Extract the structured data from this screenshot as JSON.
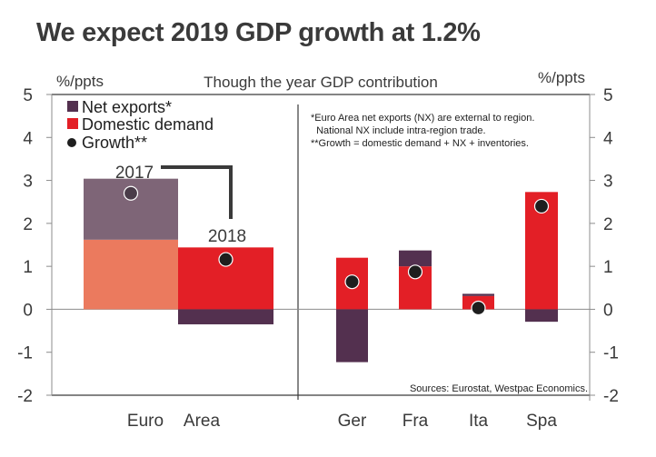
{
  "title": "We expect 2019 GDP growth at 1.2%",
  "chart_data": {
    "type": "bar",
    "stacked": true,
    "subtitle": "Though the year GDP contribution",
    "ylabel_left": "%/ppts",
    "ylabel_right": "%/ppts",
    "ylim": [
      -2,
      5
    ],
    "yticks": [
      5,
      4,
      3,
      2,
      1,
      0,
      -1,
      -2
    ],
    "grid": false,
    "legend": {
      "placement": "top-left",
      "entries": [
        {
          "label": "Net exports*",
          "marker": "square",
          "color": "#53304f"
        },
        {
          "label": "Domestic demand",
          "marker": "square",
          "color": "#e31f26"
        },
        {
          "label": "Growth**",
          "marker": "circle",
          "color": "#1e1e1e"
        }
      ]
    },
    "notes": [
      "*Euro Area net exports (NX) are external to region.",
      "  National NX include intra-region trade.",
      "**Growth = domestic demand + NX + inventories."
    ],
    "source": "Sources: Eurostat, Westpac Economics.",
    "group_labels": [
      {
        "label": "Euro",
        "group": "euro"
      },
      {
        "label": "Area",
        "group": "euro"
      }
    ],
    "categories": [
      "Euro Area 2017",
      "Euro Area 2018",
      "Ger",
      "Fra",
      "Ita",
      "Spa"
    ],
    "category_labels": [
      "",
      "",
      "Ger",
      "Fra",
      "Ita",
      "Spa"
    ],
    "bar_annotations": [
      {
        "category": "Euro Area 2017",
        "text": "2017"
      },
      {
        "category": "Euro Area 2018",
        "text": "2018"
      }
    ],
    "series": [
      {
        "name": "Domestic demand",
        "values": [
          1.62,
          1.44,
          1.2,
          1.0,
          0.31,
          2.73
        ],
        "colors": [
          "#eb7a5e",
          "#e31f26",
          "#e31f26",
          "#e31f26",
          "#e31f26",
          "#e31f26"
        ]
      },
      {
        "name": "Net exports",
        "values": [
          1.42,
          -0.35,
          -1.23,
          0.37,
          0.05,
          -0.29
        ],
        "colors": [
          "#7e6577",
          "#53304f",
          "#53304f",
          "#53304f",
          "#53304f",
          "#53304f"
        ]
      },
      {
        "name": "Growth",
        "type": "scatter",
        "values": [
          2.7,
          1.16,
          0.64,
          0.87,
          0.03,
          2.4
        ],
        "colors": [
          "#4a3c49",
          "#1e1e1e",
          "#1e1e1e",
          "#1e1e1e",
          "#1e1e1e",
          "#1e1e1e"
        ]
      }
    ]
  }
}
